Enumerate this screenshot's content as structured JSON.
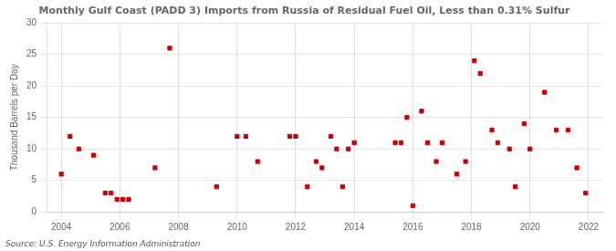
{
  "chart_data": {
    "type": "scatter",
    "title": "Monthly Gulf Coast (PADD 3) Imports from Russia of Residual Fuel Oil, Less than 0.31% Sulfur",
    "ylabel": "Thousand Barrels per Day",
    "annotation": "Source: U.S. Energy Information Administration",
    "color": "#cc0000",
    "marker": "square",
    "grid": true,
    "xlim": [
      2003.5,
      2022.5
    ],
    "ylim": [
      0,
      30
    ],
    "xticks": [
      2004,
      2006,
      2008,
      2010,
      2012,
      2014,
      2016,
      2018,
      2020,
      2022
    ],
    "yticks": [
      0,
      5,
      10,
      15,
      20,
      25,
      30
    ],
    "x": [
      2004.0,
      2004.3,
      2004.6,
      2005.1,
      2005.5,
      2005.7,
      2005.9,
      2006.1,
      2006.3,
      2007.2,
      2007.7,
      2009.3,
      2010.0,
      2010.3,
      2010.7,
      2011.8,
      2012.0,
      2012.4,
      2012.7,
      2012.9,
      2013.2,
      2013.4,
      2013.6,
      2013.8,
      2014.0,
      2015.4,
      2015.6,
      2015.8,
      2016.0,
      2016.3,
      2016.5,
      2016.8,
      2017.0,
      2017.5,
      2017.8,
      2018.1,
      2018.3,
      2018.7,
      2018.9,
      2019.3,
      2019.5,
      2019.8,
      2020.0,
      2020.5,
      2020.9,
      2021.3,
      2021.6,
      2021.9
    ],
    "values": [
      6,
      12,
      10,
      9,
      3,
      3,
      2,
      2,
      2,
      7,
      26,
      4,
      12,
      12,
      8,
      12,
      12,
      4,
      8,
      7,
      12,
      10,
      4,
      10,
      11,
      11,
      11,
      15,
      1,
      16,
      11,
      8,
      11,
      6,
      8,
      24,
      22,
      13,
      11,
      10,
      4,
      14,
      10,
      19,
      13,
      13,
      7,
      3
    ]
  }
}
